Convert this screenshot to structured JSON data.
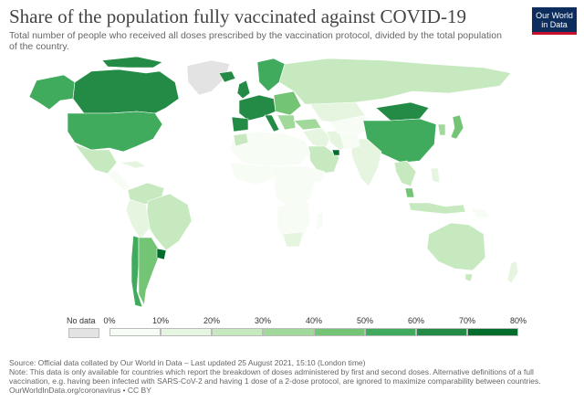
{
  "header": {
    "title": "Share of the population fully vaccinated against COVID-19",
    "subtitle": "Total number of people who received all doses prescribed by the vaccination protocol, divided by the total population of the country.",
    "logo_line1": "Our World",
    "logo_line2": "in Data"
  },
  "legend": {
    "nodata_label": "No data",
    "ticks": [
      "0%",
      "10%",
      "20%",
      "30%",
      "40%",
      "50%",
      "60%",
      "70%",
      "80%"
    ],
    "colors": [
      "#f7fcf5",
      "#e5f5e0",
      "#c7e9c0",
      "#a1d99b",
      "#74c476",
      "#41ab5d",
      "#238b45",
      "#006d2c"
    ],
    "nodata_color": "#e3e3e3"
  },
  "footer": {
    "source": "Source: Official data collated by Our World in Data – Last updated 25 August 2021, 15:10 (London time)",
    "note": "Note: This data is only available for countries which report the breakdown of doses administered by first and second doses. Alternative definitions of a full vaccination, e.g. having been infected with SARS-CoV-2 and having 1 dose of a 2-dose protocol, are ignored to maximize comparability between countries.",
    "url": "OurWorldInData.org/coronavirus • CC BY"
  }
}
